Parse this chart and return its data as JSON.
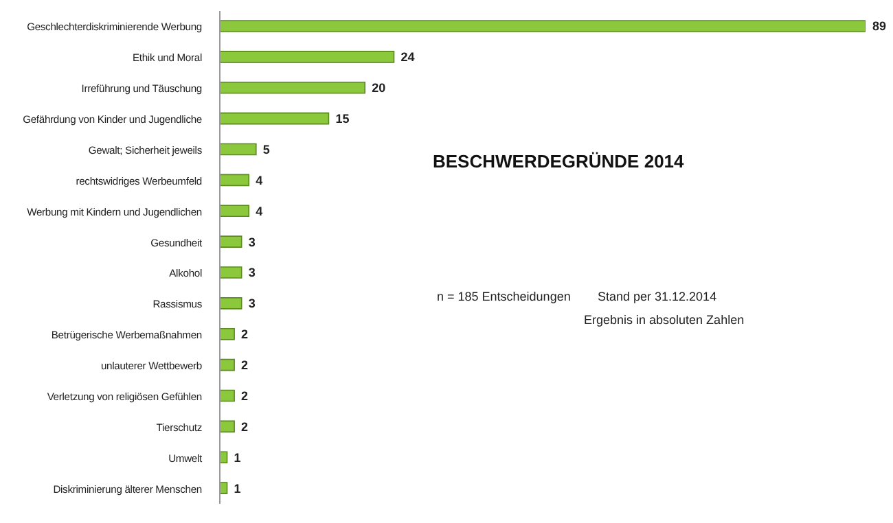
{
  "chart_data": {
    "type": "bar",
    "orientation": "horizontal",
    "title": "BESCHWERDEGRÜNDE 2014",
    "categories": [
      "Geschlechterdiskriminierende Werbung",
      "Ethik und Moral",
      "Irreführung und Täuschung",
      "Gefährdung von Kinder und Jugendliche",
      "Gewalt; Sicherheit jeweils",
      "rechtswidriges Werbeumfeld",
      "Werbung mit Kindern und Jugendlichen",
      "Gesundheit",
      "Alkohol",
      "Rassismus",
      "Betrügerische Werbemaßnahmen",
      "unlauterer Wettbewerb",
      "Verletzung von religiösen Gefühlen",
      "Tierschutz",
      "Umwelt",
      "Diskriminierung älterer Menschen"
    ],
    "values": [
      89,
      24,
      20,
      15,
      5,
      4,
      4,
      3,
      3,
      3,
      2,
      2,
      2,
      2,
      1,
      1
    ],
    "color": "#8cc83c",
    "data_labels": true,
    "grid": false,
    "legend": false,
    "annotations": [
      "n = 185 Entscheidungen",
      "Stand per 31.12.2014",
      "Ergebnis in absoluten Zahlen"
    ]
  }
}
